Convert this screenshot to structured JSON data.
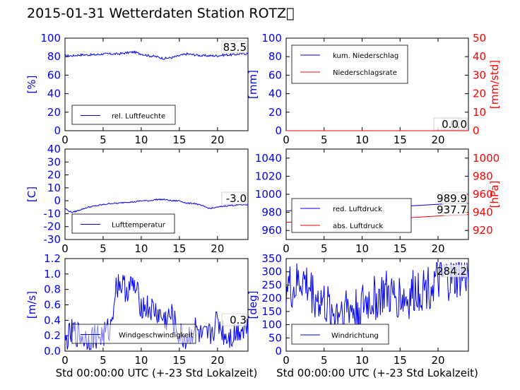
{
  "title": "2015-01-31 Wetterdaten Station ROTZ\u0000",
  "colors": {
    "blue": "#0000ff",
    "red": "#ff0000"
  },
  "chart_data": [
    {
      "type": "line",
      "ylabel": "[%]",
      "ylim": [
        0,
        100
      ],
      "yticks": [
        0,
        20,
        40,
        60,
        80,
        100
      ],
      "xlim": [
        0,
        24
      ],
      "xticks": [
        0,
        5,
        10,
        15,
        20
      ],
      "xlabel": "",
      "legend": "bottom-left",
      "series": [
        {
          "name": "rel. Luftfeuchte",
          "color": "#0000ff",
          "x": [
            0,
            1,
            2,
            3,
            4,
            5,
            6,
            7,
            8,
            9,
            10,
            11,
            12,
            13,
            14,
            15,
            16,
            17,
            18,
            19,
            20,
            21,
            22,
            23,
            24
          ],
          "y": [
            81,
            81,
            82,
            82,
            82,
            83,
            83,
            83,
            84,
            85,
            83,
            81,
            80,
            78,
            79,
            81,
            83,
            82,
            81,
            81,
            81,
            82,
            82,
            83,
            83.5
          ]
        }
      ],
      "annotations": [
        "83.5"
      ]
    },
    {
      "type": "line",
      "ylabel": "[mm]",
      "ylim": [
        0,
        100
      ],
      "yticks": [
        0,
        20,
        40,
        60,
        80,
        100
      ],
      "y2label": "[mm/std]",
      "y2lim": [
        0,
        50
      ],
      "y2ticks": [
        0,
        10,
        20,
        30,
        40,
        50
      ],
      "xlim": [
        0,
        24
      ],
      "xticks": [
        0,
        5,
        10,
        15,
        20
      ],
      "xlabel": "",
      "legend": "top-left",
      "series": [
        {
          "name": "kum. Niederschlag",
          "color": "#0000ff",
          "x": [
            0,
            24
          ],
          "y": [
            0,
            0
          ]
        },
        {
          "name": "Niederschlagsrate",
          "color": "#ff0000",
          "axis": "right",
          "x": [
            0,
            24
          ],
          "y": [
            0,
            0
          ]
        }
      ],
      "annotations": [
        "0.0",
        "0.0"
      ]
    },
    {
      "type": "line",
      "ylabel": "[C]",
      "ylim": [
        -30,
        40
      ],
      "yticks": [
        -30,
        -20,
        -10,
        0,
        10,
        20,
        30,
        40
      ],
      "xlim": [
        0,
        24
      ],
      "xticks": [
        0,
        5,
        10,
        15,
        20
      ],
      "xlabel": "",
      "legend": "bottom-left",
      "series": [
        {
          "name": "Lufttemperatur",
          "color": "#0000ff",
          "x": [
            0,
            0.5,
            1,
            2,
            3,
            4,
            5,
            6,
            7,
            8,
            9,
            10,
            11,
            12,
            13,
            14,
            15,
            16,
            17,
            18,
            19,
            20,
            21,
            22,
            23,
            24
          ],
          "y": [
            -6,
            -8,
            -9,
            -7,
            -5,
            -4,
            -3,
            -2,
            -2,
            -1,
            -1,
            0,
            0,
            1,
            1,
            0,
            0,
            -2,
            -2,
            -4,
            -6,
            -5,
            -4,
            -3.5,
            -3.2,
            -3.0
          ]
        }
      ],
      "annotations": [
        "-3.0"
      ]
    },
    {
      "type": "line",
      "ylabel": "",
      "ylim": [
        950,
        1050
      ],
      "yticks": [
        960,
        980,
        1000,
        1020,
        1040
      ],
      "y2label": "[hPa]",
      "y2lim": [
        910,
        1010
      ],
      "y2ticks": [
        920,
        940,
        960,
        980,
        1000
      ],
      "xlim": [
        0,
        24
      ],
      "xticks": [
        0,
        5,
        10,
        15,
        20
      ],
      "xlabel": "",
      "legend": "bottom-left",
      "series": [
        {
          "name": "red. Luftdruck",
          "color": "#0000ff",
          "x": [
            0,
            2,
            4,
            6,
            8,
            10,
            12,
            14,
            16,
            18,
            20,
            22,
            24
          ],
          "y": [
            981.5,
            983,
            983.5,
            984,
            984.5,
            985,
            985.5,
            986,
            987,
            988,
            989,
            989.7,
            989.9
          ]
        },
        {
          "name": "abs. Luftdruck",
          "color": "#ff0000",
          "axis": "right",
          "x": [
            0,
            2,
            4,
            6,
            8,
            10,
            12,
            14,
            16,
            18,
            20,
            22,
            24
          ],
          "y": [
            929,
            930,
            930.5,
            931,
            931.5,
            932,
            932.5,
            933,
            934,
            935,
            936,
            937,
            937.7
          ]
        }
      ],
      "annotations": [
        "989.9",
        "937.7"
      ]
    },
    {
      "type": "line",
      "ylabel": "[m/s]",
      "ylim": [
        0,
        1.2
      ],
      "yticks": [
        0.0,
        0.2,
        0.4,
        0.6,
        0.8,
        1.0,
        1.2
      ],
      "xlim": [
        0,
        24
      ],
      "xticks": [
        0,
        5,
        10,
        15,
        20
      ],
      "xlabel": "Std 00:00:00 UTC (+-23 Std Lokalzeit)",
      "legend": "bottom-left",
      "series": [
        {
          "name": "Windgeschwindigkeit",
          "color": "#0000ff",
          "x": [
            0,
            1,
            2,
            3,
            4,
            5,
            6,
            6.5,
            7,
            8,
            9,
            10,
            11,
            12,
            13,
            14,
            15,
            16,
            17,
            18,
            19,
            20,
            21,
            22,
            23,
            24
          ],
          "y": [
            0.1,
            0.25,
            0.2,
            0.15,
            0.2,
            0.2,
            0.3,
            0.75,
            0.9,
            0.8,
            0.85,
            0.6,
            0.55,
            0.5,
            0.4,
            0.45,
            0.2,
            0.15,
            0.3,
            0.15,
            0.2,
            0.4,
            0.2,
            0.2,
            0.3,
            0.3
          ]
        }
      ],
      "annotations": [
        "0.3"
      ]
    },
    {
      "type": "line",
      "ylabel": "[deg]",
      "ylim": [
        0,
        350
      ],
      "yticks": [
        0,
        50,
        100,
        150,
        200,
        250,
        300,
        350
      ],
      "xlim": [
        0,
        24
      ],
      "xticks": [
        0,
        5,
        10,
        15,
        20
      ],
      "xlabel": "Std 00:00:00 UTC (+-23 Std Lokalzeit)",
      "legend": "bottom-left",
      "series": [
        {
          "name": "Windrichtung",
          "color": "#0000ff",
          "x": [
            0,
            1,
            2,
            3,
            4,
            5,
            6,
            7,
            8,
            9,
            10,
            11,
            12,
            13,
            14,
            15,
            16,
            17,
            18,
            19,
            20,
            21,
            22,
            23,
            24
          ],
          "y": [
            250,
            230,
            270,
            240,
            200,
            180,
            140,
            160,
            170,
            150,
            170,
            190,
            200,
            220,
            200,
            210,
            190,
            230,
            240,
            250,
            260,
            270,
            265,
            280,
            284.2
          ]
        }
      ],
      "annotations": [
        "284.2"
      ]
    }
  ]
}
